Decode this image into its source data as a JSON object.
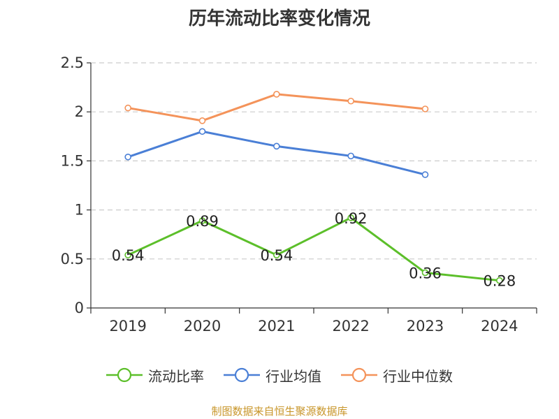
{
  "chart_data": {
    "type": "line",
    "title": "历年流动比率变化情况",
    "categories": [
      "2019",
      "2020",
      "2021",
      "2022",
      "2023",
      "2024"
    ],
    "ylim": [
      0,
      2.5
    ],
    "yticks": [
      "0",
      "0.5",
      "1",
      "1.5",
      "2",
      "2.5"
    ],
    "grid": true,
    "legend_position": "bottom",
    "series": [
      {
        "name": "流动比率",
        "color": "#5cbf2a",
        "values": [
          0.54,
          0.89,
          0.54,
          0.92,
          0.36,
          0.28
        ],
        "labels": [
          "0.54",
          "0.89",
          "0.54",
          "0.92",
          "0.36",
          "0.28"
        ]
      },
      {
        "name": "行业均值",
        "color": "#4a7fd6",
        "values": [
          1.54,
          1.8,
          1.65,
          1.55,
          1.36,
          null
        ]
      },
      {
        "name": "行业中位数",
        "color": "#f4935a",
        "values": [
          2.04,
          1.91,
          2.18,
          2.11,
          2.03,
          null
        ]
      }
    ]
  },
  "source": "制图数据来自恒生聚源数据库"
}
